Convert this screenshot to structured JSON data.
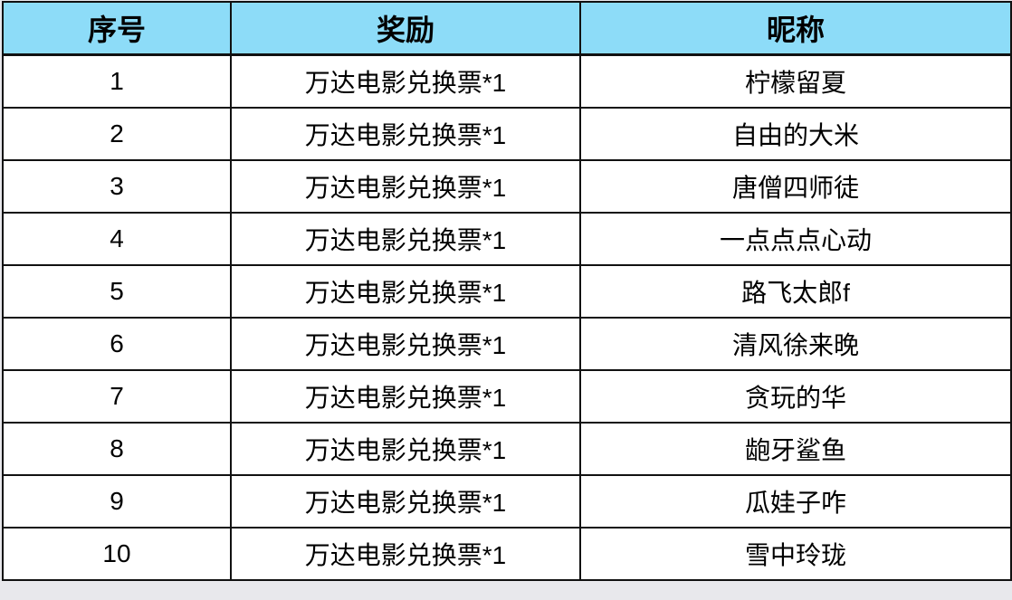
{
  "table": {
    "header_color": "#8ddcf8",
    "headers": [
      "序号",
      "奖励",
      "昵称"
    ],
    "rows": [
      [
        "1",
        "万达电影兑换票*1",
        "柠檬留夏"
      ],
      [
        "2",
        "万达电影兑换票*1",
        "自由的大米"
      ],
      [
        "3",
        "万达电影兑换票*1",
        "唐僧四师徒"
      ],
      [
        "4",
        "万达电影兑换票*1",
        "一点点点心动"
      ],
      [
        "5",
        "万达电影兑换票*1",
        "路飞太郎f"
      ],
      [
        "6",
        "万达电影兑换票*1",
        "清风徐来晚"
      ],
      [
        "7",
        "万达电影兑换票*1",
        "贪玩的华"
      ],
      [
        "8",
        "万达电影兑换票*1",
        "龅牙鲨鱼"
      ],
      [
        "9",
        "万达电影兑换票*1",
        "瓜娃子咋"
      ],
      [
        "10",
        "万达电影兑换票*1",
        "雪中玲珑"
      ]
    ]
  }
}
